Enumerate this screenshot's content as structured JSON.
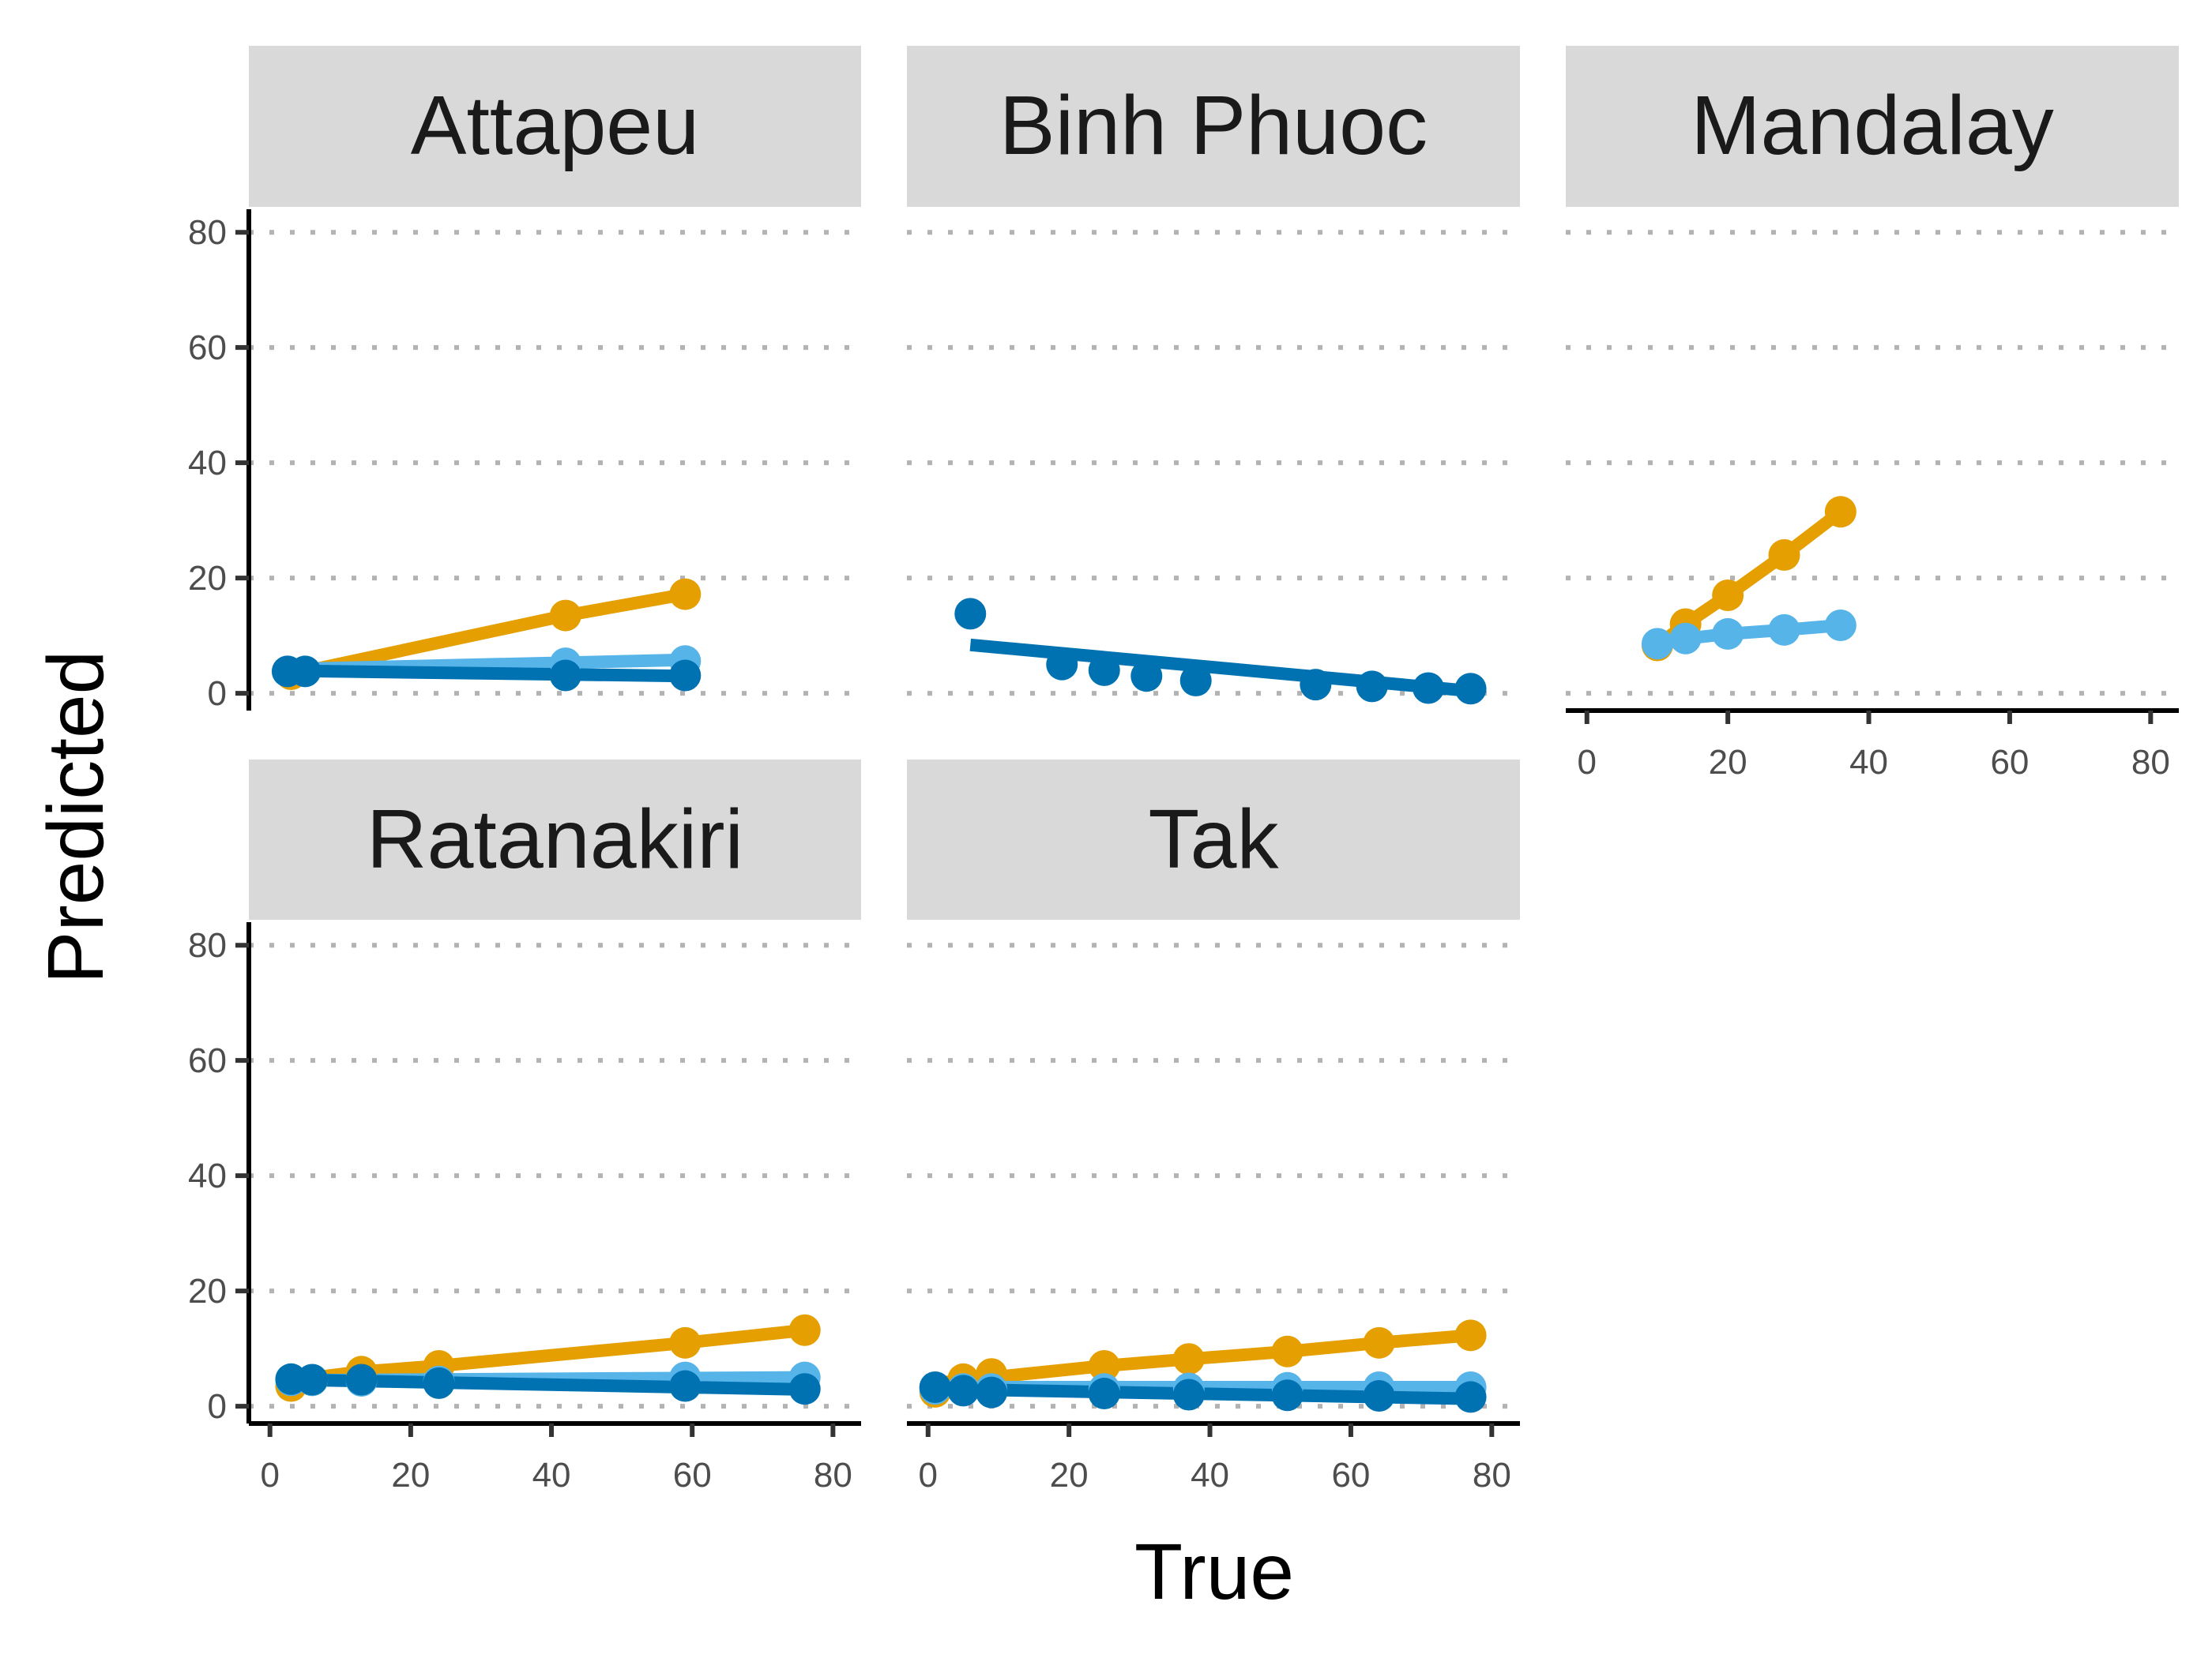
{
  "chart_data": {
    "type": "line",
    "xlabel": "True",
    "ylabel": "Predicted",
    "xlim": [
      -3,
      84
    ],
    "ylim": [
      -3,
      84
    ],
    "x_ticks": [
      0,
      20,
      40,
      60,
      80
    ],
    "y_ticks": [
      0,
      20,
      40,
      60,
      80
    ],
    "grid": "horizontal dotted",
    "legend": "none",
    "colors": {
      "strip_bg": "#d9d9d9",
      "grid": "#b3b3b3",
      "axis": "#000000",
      "orange": "#E69F00",
      "light_blue": "#56B4E9",
      "dark_blue": "#0072B2"
    },
    "panels": [
      {
        "name": "Attapeu",
        "series": [
          {
            "color": "#E69F00",
            "points": [
              [
                3,
                3.3
              ],
              [
                42,
                13.5
              ],
              [
                59,
                17.2
              ]
            ],
            "line": [
              [
                3,
                3.3
              ],
              [
                42,
                13.5
              ],
              [
                59,
                17.2
              ]
            ]
          },
          {
            "color": "#56B4E9",
            "points": [
              [
                2.5,
                3.8
              ],
              [
                42,
                5.2
              ],
              [
                59,
                5.6
              ]
            ],
            "line": [
              [
                3,
                4.2
              ],
              [
                59,
                5.8
              ]
            ]
          },
          {
            "color": "#0072B2",
            "points": [
              [
                2.5,
                3.8
              ],
              [
                5,
                3.8
              ],
              [
                42,
                3.1
              ],
              [
                59,
                3.1
              ]
            ],
            "line": [
              [
                3,
                3.9
              ],
              [
                59,
                3.0
              ]
            ]
          }
        ]
      },
      {
        "name": "Binh Phuoc",
        "series": [
          {
            "color": "#0072B2",
            "points": [
              [
                6,
                13.8
              ],
              [
                19,
                5
              ],
              [
                25,
                4
              ],
              [
                31,
                3
              ],
              [
                38,
                2.2
              ],
              [
                55,
                1.5
              ],
              [
                63,
                1.2
              ],
              [
                71,
                0.9
              ],
              [
                77,
                0.8
              ]
            ],
            "line": [
              [
                6,
                8.4
              ],
              [
                77,
                0.4
              ]
            ]
          }
        ]
      },
      {
        "name": "Mandalay",
        "series": [
          {
            "color": "#E69F00",
            "points": [
              [
                10,
                8.3
              ],
              [
                14,
                12
              ],
              [
                20,
                17
              ],
              [
                28,
                24
              ],
              [
                36,
                31.5
              ]
            ],
            "line": [
              [
                10,
                8.3
              ],
              [
                14,
                12
              ],
              [
                20,
                17
              ],
              [
                28,
                24
              ],
              [
                36,
                31.5
              ]
            ]
          },
          {
            "color": "#56B4E9",
            "points": [
              [
                10,
                8.6
              ],
              [
                14,
                9.5
              ],
              [
                20,
                10.3
              ],
              [
                28,
                11
              ],
              [
                36,
                11.8
              ]
            ],
            "line": [
              [
                10,
                8.6
              ],
              [
                14,
                9.5
              ],
              [
                20,
                10.3
              ],
              [
                28,
                11
              ],
              [
                36,
                11.8
              ]
            ]
          }
        ]
      },
      {
        "name": "Ratanakiri",
        "series": [
          {
            "color": "#E69F00",
            "points": [
              [
                3,
                3.5
              ],
              [
                6,
                4.5
              ],
              [
                13,
                6
              ],
              [
                24,
                7
              ],
              [
                59,
                11
              ],
              [
                76,
                13.2
              ]
            ],
            "line": [
              [
                3,
                4.5
              ],
              [
                13,
                6
              ],
              [
                24,
                7
              ],
              [
                59,
                11
              ],
              [
                76,
                13.2
              ]
            ]
          },
          {
            "color": "#56B4E9",
            "points": [
              [
                3,
                4.5
              ],
              [
                6,
                4.5
              ],
              [
                13,
                4.4
              ],
              [
                24,
                4.3
              ],
              [
                59,
                5
              ],
              [
                76,
                5
              ]
            ],
            "line": [
              [
                3,
                4.5
              ],
              [
                76,
                5.0
              ]
            ]
          },
          {
            "color": "#0072B2",
            "points": [
              [
                3,
                4.7
              ],
              [
                6,
                4.6
              ],
              [
                13,
                4.6
              ],
              [
                24,
                4.0
              ],
              [
                59,
                3.5
              ],
              [
                76,
                3.0
              ]
            ],
            "line": [
              [
                3,
                4.6
              ],
              [
                76,
                2.9
              ]
            ]
          }
        ]
      },
      {
        "name": "Tak",
        "series": [
          {
            "color": "#E69F00",
            "points": [
              [
                1,
                2.5
              ],
              [
                5,
                4.7
              ],
              [
                9,
                5.6
              ],
              [
                25,
                7
              ],
              [
                37,
                8.2
              ],
              [
                51,
                9.5
              ],
              [
                64,
                11
              ],
              [
                77,
                12.3
              ]
            ],
            "line": [
              [
                1,
                4.0
              ],
              [
                25,
                7
              ],
              [
                37,
                8.2
              ],
              [
                51,
                9.5
              ],
              [
                64,
                11
              ],
              [
                77,
                12.3
              ]
            ]
          },
          {
            "color": "#56B4E9",
            "points": [
              [
                1,
                3
              ],
              [
                5,
                3
              ],
              [
                9,
                3
              ],
              [
                25,
                3
              ],
              [
                37,
                3.1
              ],
              [
                51,
                3.2
              ],
              [
                64,
                3.3
              ],
              [
                77,
                3.3
              ]
            ],
            "line": [
              [
                1,
                3.3
              ],
              [
                77,
                3.3
              ]
            ]
          },
          {
            "color": "#0072B2",
            "points": [
              [
                1,
                3.3
              ],
              [
                5,
                2.7
              ],
              [
                9,
                2.4
              ],
              [
                25,
                2.2
              ],
              [
                37,
                2
              ],
              [
                51,
                1.9
              ],
              [
                64,
                1.8
              ],
              [
                77,
                1.6
              ]
            ],
            "line": [
              [
                1,
                3.0
              ],
              [
                77,
                1.3
              ]
            ]
          }
        ]
      }
    ]
  }
}
